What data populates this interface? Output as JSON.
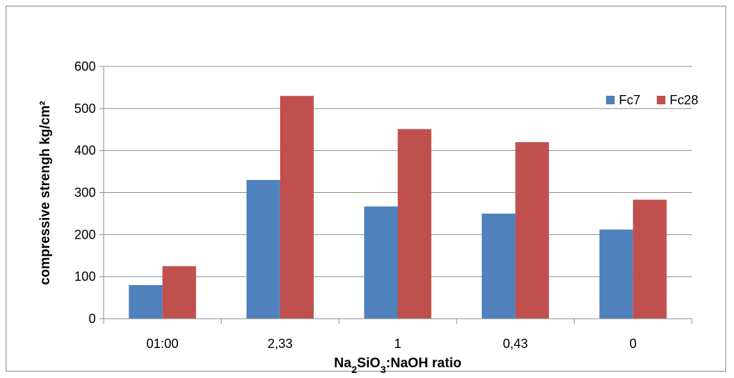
{
  "chart_data": {
    "type": "bar",
    "title": "",
    "xlabel": {
      "parts": [
        {
          "text": "Na",
          "sub": false
        },
        {
          "text": "2",
          "sub": true
        },
        {
          "text": "SiO",
          "sub": false
        },
        {
          "text": "3",
          "sub": true
        },
        {
          "text": ":NaOH ratio",
          "sub": false
        }
      ]
    },
    "ylabel": "compressive strengh kg/cm²",
    "categories": [
      "01:00",
      "2,33",
      "1",
      "0,43",
      "0"
    ],
    "series": [
      {
        "name": "Fc7",
        "color": "#4f81bd",
        "values": [
          80,
          330,
          267,
          250,
          212
        ]
      },
      {
        "name": "Fc28",
        "color": "#c0504d",
        "values": [
          125,
          530,
          451,
          420,
          283
        ]
      }
    ],
    "ylim": [
      0,
      600
    ],
    "yticks": [
      0,
      100,
      200,
      300,
      400,
      500,
      600
    ],
    "grid": true,
    "legend": "top-right"
  }
}
